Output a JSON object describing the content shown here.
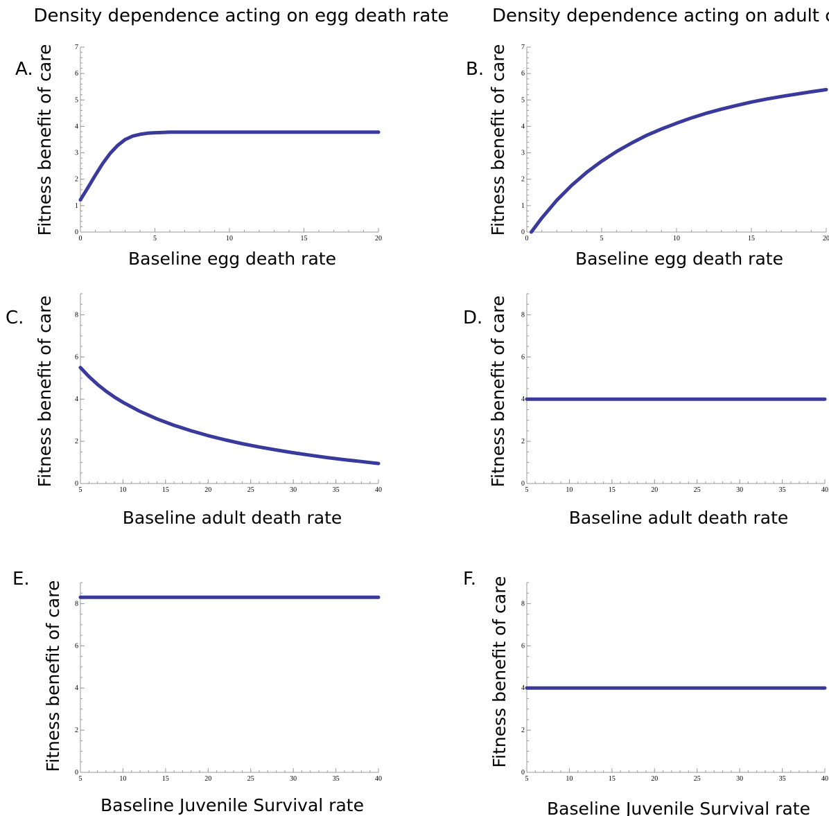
{
  "column_titles": [
    "Density dependence acting on egg death rate",
    "Density dependence acting on adult c"
  ],
  "chart_data": [
    {
      "panel": "A.",
      "type": "line",
      "ylabel": "Fitness benefit of care",
      "xlabel": "Baseline egg death rate",
      "xlim": [
        0,
        20
      ],
      "ylim": [
        0,
        7
      ],
      "xticks": [
        0,
        5,
        10,
        15,
        20
      ],
      "yticks": [
        0,
        1,
        2,
        3,
        4,
        5,
        6,
        7
      ],
      "xminor": 1,
      "yminor": 0.2,
      "series": [
        {
          "x": [
            0,
            0.5,
            1,
            1.5,
            2,
            2.5,
            3,
            3.5,
            4,
            4.5,
            5,
            5.5,
            6,
            8,
            10,
            12,
            14,
            16,
            18,
            20
          ],
          "y": [
            1.22,
            1.68,
            2.15,
            2.6,
            2.98,
            3.28,
            3.5,
            3.63,
            3.7,
            3.74,
            3.76,
            3.77,
            3.78,
            3.78,
            3.78,
            3.78,
            3.78,
            3.78,
            3.78,
            3.78
          ]
        }
      ]
    },
    {
      "panel": "B.",
      "type": "line",
      "ylabel": "Fitness benefit of care",
      "xlabel": "Baseline egg death rate",
      "xlim": [
        0,
        20
      ],
      "ylim": [
        0,
        7
      ],
      "xticks": [
        0,
        5,
        10,
        15,
        20
      ],
      "yticks": [
        0,
        1,
        2,
        3,
        4,
        5,
        6,
        7
      ],
      "xminor": 1,
      "yminor": 0.2,
      "series": [
        {
          "x": [
            0.3,
            1,
            2,
            3,
            4,
            5,
            6,
            7,
            8,
            9,
            10,
            11,
            12,
            13,
            14,
            15,
            16,
            17,
            18,
            19,
            20
          ],
          "y": [
            0.0,
            0.53,
            1.2,
            1.77,
            2.26,
            2.68,
            3.05,
            3.37,
            3.66,
            3.9,
            4.12,
            4.32,
            4.5,
            4.65,
            4.79,
            4.92,
            5.03,
            5.13,
            5.22,
            5.31,
            5.39
          ]
        }
      ]
    },
    {
      "panel": "C.",
      "type": "line",
      "ylabel": "Fitness benefit of care",
      "xlabel": "Baseline adult death rate",
      "xlim": [
        5,
        40
      ],
      "ylim": [
        0,
        9
      ],
      "xticks": [
        5,
        10,
        15,
        20,
        25,
        30,
        35,
        40
      ],
      "yticks": [
        0,
        2,
        4,
        6,
        8
      ],
      "xminor": 1,
      "yminor": 0.5,
      "series": [
        {
          "x": [
            5,
            6,
            7,
            8,
            9,
            10,
            12,
            14,
            16,
            18,
            20,
            22,
            24,
            26,
            28,
            30,
            32,
            34,
            36,
            38,
            40
          ],
          "y": [
            5.5,
            5.07,
            4.7,
            4.38,
            4.1,
            3.85,
            3.42,
            3.06,
            2.76,
            2.5,
            2.27,
            2.07,
            1.89,
            1.73,
            1.59,
            1.46,
            1.34,
            1.23,
            1.13,
            1.04,
            0.95
          ]
        }
      ]
    },
    {
      "panel": "D.",
      "type": "line",
      "ylabel": "Fitness benefit of care",
      "xlabel": "Baseline adult death rate",
      "xlim": [
        5,
        40
      ],
      "ylim": [
        0,
        9
      ],
      "xticks": [
        5,
        10,
        15,
        20,
        25,
        30,
        35,
        40
      ],
      "yticks": [
        0,
        2,
        4,
        6,
        8
      ],
      "xminor": 1,
      "yminor": 0.5,
      "series": [
        {
          "x": [
            5,
            40
          ],
          "y": [
            4.0,
            4.0
          ]
        }
      ]
    },
    {
      "panel": "E.",
      "type": "line",
      "ylabel": "Fitness benefit of care",
      "xlabel": "Baseline Juvenile Survival rate",
      "xlim": [
        5,
        40
      ],
      "ylim": [
        0,
        9
      ],
      "xticks": [
        5,
        10,
        15,
        20,
        25,
        30,
        35,
        40
      ],
      "yticks": [
        0,
        2,
        4,
        6,
        8
      ],
      "xminor": 1,
      "yminor": 0.5,
      "series": [
        {
          "x": [
            5,
            40
          ],
          "y": [
            8.3,
            8.3
          ]
        }
      ]
    },
    {
      "panel": "F.",
      "type": "line",
      "ylabel": "Fitness benefit of care",
      "xlabel": "Baseline Juvenile Survival rate",
      "xlim": [
        5,
        40
      ],
      "ylim": [
        0,
        9
      ],
      "xticks": [
        5,
        10,
        15,
        20,
        25,
        30,
        35,
        40
      ],
      "yticks": [
        0,
        2,
        4,
        6,
        8
      ],
      "xminor": 1,
      "yminor": 0.5,
      "series": [
        {
          "x": [
            5,
            40
          ],
          "y": [
            4.0,
            4.0
          ]
        }
      ]
    }
  ],
  "colors": {
    "curve": "#3a3a9c",
    "axis": "#9a9a9a"
  }
}
